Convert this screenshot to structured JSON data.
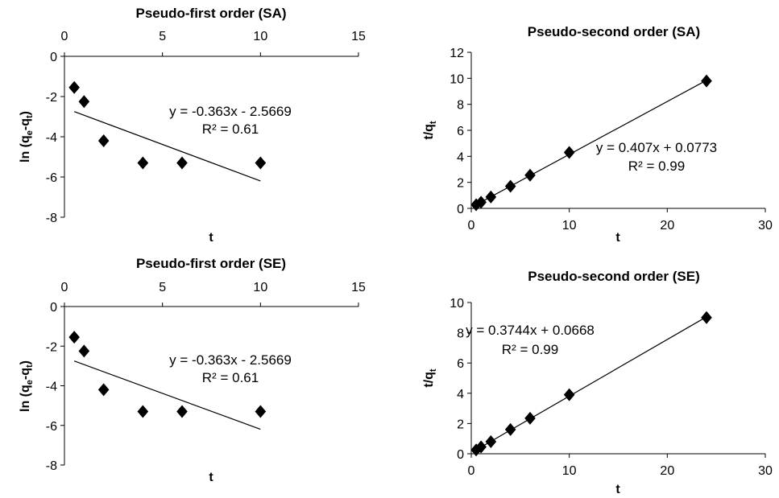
{
  "chart_data": [
    {
      "id": "pfo_sa",
      "type": "scatter",
      "title": "Pseudo-first order (SA)",
      "xlabel": "t",
      "ylabel": "ln (q_e-q_t)",
      "ylabel_parts": [
        "ln (q",
        "e",
        "-q",
        "t",
        ")"
      ],
      "x_axis_position": "top",
      "xlim": [
        0,
        15
      ],
      "ylim": [
        -8,
        0
      ],
      "xticks": [
        "0",
        "5",
        "10",
        "15"
      ],
      "yticks": [
        "0",
        "-2",
        "-4",
        "-6",
        "-8"
      ],
      "points": [
        [
          0.5,
          -1.55
        ],
        [
          1,
          -2.25
        ],
        [
          2,
          -4.2
        ],
        [
          4,
          -5.3
        ],
        [
          6,
          -5.3
        ],
        [
          10,
          -5.3
        ]
      ],
      "trendline": {
        "slope": -0.363,
        "intercept": -2.5669,
        "x_range": [
          0.5,
          10
        ]
      },
      "equation": "y = -0.363x - 2.5669",
      "r2": "R² = 0.61",
      "grid": false,
      "legend": "none"
    },
    {
      "id": "pso_sa",
      "type": "scatter",
      "title": "Pseudo-second order (SA)",
      "xlabel": "t",
      "ylabel": "t/q_t",
      "ylabel_parts": [
        "t/q",
        "t"
      ],
      "x_axis_position": "bottom",
      "xlim": [
        0,
        30
      ],
      "ylim": [
        0,
        12
      ],
      "xticks": [
        "0",
        "10",
        "20",
        "30"
      ],
      "yticks": [
        "0",
        "2",
        "4",
        "6",
        "8",
        "10",
        "12"
      ],
      "points": [
        [
          0.5,
          0.28
        ],
        [
          1,
          0.47
        ],
        [
          2,
          0.87
        ],
        [
          4,
          1.7
        ],
        [
          6,
          2.55
        ],
        [
          10,
          4.3
        ],
        [
          24,
          9.8
        ]
      ],
      "trendline": {
        "slope": 0.407,
        "intercept": 0.0773,
        "x_range": [
          0.5,
          24
        ]
      },
      "equation": "y = 0.407x + 0.0773",
      "r2": "R² = 0.99",
      "grid": false,
      "legend": "none"
    },
    {
      "id": "pfo_se",
      "type": "scatter",
      "title": "Pseudo-first order (SE)",
      "xlabel": "t",
      "ylabel": "ln (q_e-q_t)",
      "ylabel_parts": [
        "ln (q",
        "e",
        "-q",
        "t",
        ")"
      ],
      "x_axis_position": "top",
      "xlim": [
        0,
        15
      ],
      "ylim": [
        -8,
        0
      ],
      "xticks": [
        "0",
        "5",
        "10",
        "15"
      ],
      "yticks": [
        "0",
        "-2",
        "-4",
        "-6",
        "-8"
      ],
      "points": [
        [
          0.5,
          -1.55
        ],
        [
          1,
          -2.25
        ],
        [
          2,
          -4.2
        ],
        [
          4,
          -5.3
        ],
        [
          6,
          -5.3
        ],
        [
          10,
          -5.3
        ]
      ],
      "trendline": {
        "slope": -0.363,
        "intercept": -2.5669,
        "x_range": [
          0.5,
          10
        ]
      },
      "equation": "y = -0.363x - 2.5669",
      "r2": "R² = 0.61",
      "grid": false,
      "legend": "none"
    },
    {
      "id": "pso_se",
      "type": "scatter",
      "title": "Pseudo-second order (SE)",
      "xlabel": "t",
      "ylabel": "t/q_t",
      "ylabel_parts": [
        "t/q",
        "t"
      ],
      "x_axis_position": "bottom",
      "xlim": [
        0,
        30
      ],
      "ylim": [
        0,
        10
      ],
      "xticks": [
        "0",
        "10",
        "20",
        "30"
      ],
      "yticks": [
        "0",
        "2",
        "4",
        "6",
        "8",
        "10"
      ],
      "points": [
        [
          0.5,
          0.25
        ],
        [
          1,
          0.45
        ],
        [
          2,
          0.8
        ],
        [
          4,
          1.6
        ],
        [
          6,
          2.35
        ],
        [
          10,
          3.9
        ],
        [
          24,
          9.0
        ]
      ],
      "trendline": {
        "slope": 0.3744,
        "intercept": 0.0668,
        "x_range": [
          0.5,
          24
        ]
      },
      "equation": "y = 0.3744x + 0.0668",
      "r2": "R² = 0.99",
      "grid": false,
      "legend": "none"
    }
  ]
}
